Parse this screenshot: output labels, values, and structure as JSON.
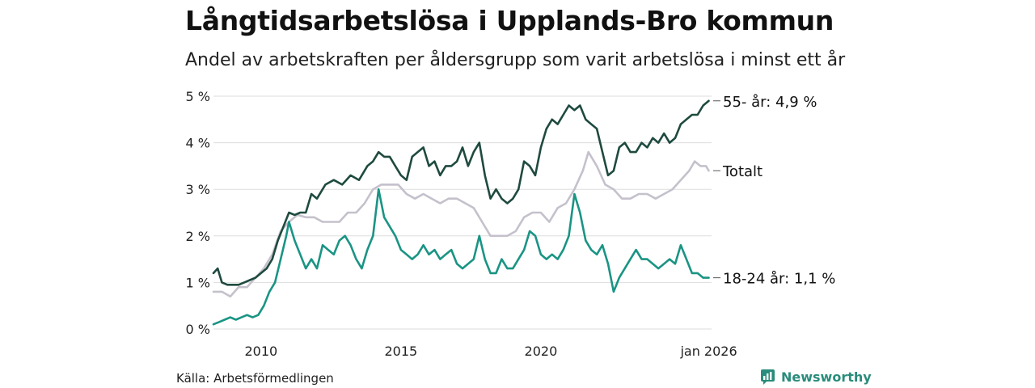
{
  "header": {
    "title": "Långtidsarbetslösa i Upplands-Bro kommun",
    "subtitle": "Andel av arbetskraften per åldersgrupp som varit arbetslösa i minst ett år"
  },
  "footer": {
    "source": "Källa: Arbetsförmedlingen",
    "brand": "Newsworthy"
  },
  "colors": {
    "series_55": "#1f4a3f",
    "series_total": "#c5c1cc",
    "series_18_24": "#1a9484",
    "grid": "#dddddd",
    "brand": "#2a8c7c"
  },
  "chart_data": {
    "type": "line",
    "title": "Långtidsarbetslösa i Upplands-Bro kommun",
    "subtitle": "Andel av arbetskraften per åldersgrupp som varit arbetslösa i minst ett år",
    "xlabel": "",
    "ylabel": "",
    "xlim": [
      2008.3,
      2026.1
    ],
    "ylim": [
      0,
      5
    ],
    "x_ticks": [
      {
        "value": 2010,
        "label": "2010"
      },
      {
        "value": 2015,
        "label": "2015"
      },
      {
        "value": 2020,
        "label": "2020"
      },
      {
        "value": 2026.0,
        "label": "jan 2026"
      }
    ],
    "y_ticks": [
      {
        "value": 0,
        "label": "0 %"
      },
      {
        "value": 1,
        "label": "1 %"
      },
      {
        "value": 2,
        "label": "2 %"
      },
      {
        "value": 3,
        "label": "3 %"
      },
      {
        "value": 4,
        "label": "4 %"
      },
      {
        "value": 5,
        "label": "5 %"
      }
    ],
    "grid": true,
    "series": [
      {
        "name": "Totalt",
        "end_label": "Totalt",
        "color": "#c5c1cc",
        "points": [
          [
            2008.3,
            0.8
          ],
          [
            2008.6,
            0.8
          ],
          [
            2008.9,
            0.7
          ],
          [
            2009.2,
            0.9
          ],
          [
            2009.5,
            0.9
          ],
          [
            2009.8,
            1.1
          ],
          [
            2010.1,
            1.3
          ],
          [
            2010.4,
            1.6
          ],
          [
            2010.7,
            2.1
          ],
          [
            2011.0,
            2.3
          ],
          [
            2011.3,
            2.45
          ],
          [
            2011.6,
            2.4
          ],
          [
            2011.9,
            2.4
          ],
          [
            2012.2,
            2.3
          ],
          [
            2012.5,
            2.3
          ],
          [
            2012.8,
            2.3
          ],
          [
            2013.1,
            2.5
          ],
          [
            2013.4,
            2.5
          ],
          [
            2013.7,
            2.7
          ],
          [
            2014.0,
            3.0
          ],
          [
            2014.3,
            3.1
          ],
          [
            2014.6,
            3.1
          ],
          [
            2014.9,
            3.1
          ],
          [
            2015.2,
            2.9
          ],
          [
            2015.5,
            2.8
          ],
          [
            2015.8,
            2.9
          ],
          [
            2016.1,
            2.8
          ],
          [
            2016.4,
            2.7
          ],
          [
            2016.7,
            2.8
          ],
          [
            2017.0,
            2.8
          ],
          [
            2017.3,
            2.7
          ],
          [
            2017.6,
            2.6
          ],
          [
            2017.9,
            2.3
          ],
          [
            2018.2,
            2.0
          ],
          [
            2018.5,
            2.0
          ],
          [
            2018.8,
            2.0
          ],
          [
            2019.1,
            2.1
          ],
          [
            2019.4,
            2.4
          ],
          [
            2019.7,
            2.5
          ],
          [
            2020.0,
            2.5
          ],
          [
            2020.3,
            2.3
          ],
          [
            2020.6,
            2.6
          ],
          [
            2020.9,
            2.7
          ],
          [
            2021.2,
            3.0
          ],
          [
            2021.5,
            3.4
          ],
          [
            2021.7,
            3.8
          ],
          [
            2022.0,
            3.5
          ],
          [
            2022.3,
            3.1
          ],
          [
            2022.6,
            3.0
          ],
          [
            2022.9,
            2.8
          ],
          [
            2023.2,
            2.8
          ],
          [
            2023.5,
            2.9
          ],
          [
            2023.8,
            2.9
          ],
          [
            2024.1,
            2.8
          ],
          [
            2024.4,
            2.9
          ],
          [
            2024.7,
            3.0
          ],
          [
            2025.0,
            3.2
          ],
          [
            2025.3,
            3.4
          ],
          [
            2025.5,
            3.6
          ],
          [
            2025.7,
            3.5
          ],
          [
            2025.9,
            3.5
          ],
          [
            2026.0,
            3.4
          ]
        ]
      },
      {
        "name": "55- år",
        "end_label": "55- år: 4,9 %",
        "color": "#1f4a3f",
        "points": [
          [
            2008.3,
            1.2
          ],
          [
            2008.45,
            1.3
          ],
          [
            2008.6,
            1.0
          ],
          [
            2008.8,
            0.95
          ],
          [
            2009.0,
            0.95
          ],
          [
            2009.2,
            0.95
          ],
          [
            2009.4,
            1.0
          ],
          [
            2009.6,
            1.05
          ],
          [
            2009.8,
            1.1
          ],
          [
            2010.0,
            1.2
          ],
          [
            2010.2,
            1.3
          ],
          [
            2010.4,
            1.5
          ],
          [
            2010.6,
            1.9
          ],
          [
            2010.8,
            2.2
          ],
          [
            2011.0,
            2.5
          ],
          [
            2011.2,
            2.45
          ],
          [
            2011.4,
            2.5
          ],
          [
            2011.6,
            2.5
          ],
          [
            2011.8,
            2.9
          ],
          [
            2012.0,
            2.8
          ],
          [
            2012.3,
            3.1
          ],
          [
            2012.6,
            3.2
          ],
          [
            2012.9,
            3.1
          ],
          [
            2013.2,
            3.3
          ],
          [
            2013.5,
            3.2
          ],
          [
            2013.8,
            3.5
          ],
          [
            2014.0,
            3.6
          ],
          [
            2014.2,
            3.8
          ],
          [
            2014.4,
            3.7
          ],
          [
            2014.6,
            3.7
          ],
          [
            2014.8,
            3.5
          ],
          [
            2015.0,
            3.3
          ],
          [
            2015.2,
            3.2
          ],
          [
            2015.4,
            3.7
          ],
          [
            2015.6,
            3.8
          ],
          [
            2015.8,
            3.9
          ],
          [
            2016.0,
            3.5
          ],
          [
            2016.2,
            3.6
          ],
          [
            2016.4,
            3.3
          ],
          [
            2016.6,
            3.5
          ],
          [
            2016.8,
            3.5
          ],
          [
            2017.0,
            3.6
          ],
          [
            2017.2,
            3.9
          ],
          [
            2017.4,
            3.5
          ],
          [
            2017.6,
            3.8
          ],
          [
            2017.8,
            4.0
          ],
          [
            2018.0,
            3.3
          ],
          [
            2018.2,
            2.8
          ],
          [
            2018.4,
            3.0
          ],
          [
            2018.6,
            2.8
          ],
          [
            2018.8,
            2.7
          ],
          [
            2019.0,
            2.8
          ],
          [
            2019.2,
            3.0
          ],
          [
            2019.4,
            3.6
          ],
          [
            2019.6,
            3.5
          ],
          [
            2019.8,
            3.3
          ],
          [
            2020.0,
            3.9
          ],
          [
            2020.2,
            4.3
          ],
          [
            2020.4,
            4.5
          ],
          [
            2020.6,
            4.4
          ],
          [
            2020.8,
            4.6
          ],
          [
            2021.0,
            4.8
          ],
          [
            2021.2,
            4.7
          ],
          [
            2021.4,
            4.8
          ],
          [
            2021.6,
            4.5
          ],
          [
            2021.8,
            4.4
          ],
          [
            2022.0,
            4.3
          ],
          [
            2022.2,
            3.8
          ],
          [
            2022.4,
            3.3
          ],
          [
            2022.6,
            3.4
          ],
          [
            2022.8,
            3.9
          ],
          [
            2023.0,
            4.0
          ],
          [
            2023.2,
            3.8
          ],
          [
            2023.4,
            3.8
          ],
          [
            2023.6,
            4.0
          ],
          [
            2023.8,
            3.9
          ],
          [
            2024.0,
            4.1
          ],
          [
            2024.2,
            4.0
          ],
          [
            2024.4,
            4.2
          ],
          [
            2024.6,
            4.0
          ],
          [
            2024.8,
            4.1
          ],
          [
            2025.0,
            4.4
          ],
          [
            2025.2,
            4.5
          ],
          [
            2025.4,
            4.6
          ],
          [
            2025.6,
            4.6
          ],
          [
            2025.8,
            4.8
          ],
          [
            2026.0,
            4.9
          ]
        ]
      },
      {
        "name": "18-24 år",
        "end_label": "18-24 år: 1,1 %",
        "color": "#1a9484",
        "points": [
          [
            2008.3,
            0.1
          ],
          [
            2008.5,
            0.15
          ],
          [
            2008.7,
            0.2
          ],
          [
            2008.9,
            0.25
          ],
          [
            2009.1,
            0.2
          ],
          [
            2009.3,
            0.25
          ],
          [
            2009.5,
            0.3
          ],
          [
            2009.7,
            0.25
          ],
          [
            2009.9,
            0.3
          ],
          [
            2010.1,
            0.5
          ],
          [
            2010.3,
            0.8
          ],
          [
            2010.5,
            1.0
          ],
          [
            2010.7,
            1.5
          ],
          [
            2010.9,
            2.0
          ],
          [
            2011.0,
            2.3
          ],
          [
            2011.2,
            1.9
          ],
          [
            2011.4,
            1.6
          ],
          [
            2011.6,
            1.3
          ],
          [
            2011.8,
            1.5
          ],
          [
            2012.0,
            1.3
          ],
          [
            2012.2,
            1.8
          ],
          [
            2012.4,
            1.7
          ],
          [
            2012.6,
            1.6
          ],
          [
            2012.8,
            1.9
          ],
          [
            2013.0,
            2.0
          ],
          [
            2013.2,
            1.8
          ],
          [
            2013.4,
            1.5
          ],
          [
            2013.6,
            1.3
          ],
          [
            2013.8,
            1.7
          ],
          [
            2014.0,
            2.0
          ],
          [
            2014.2,
            3.0
          ],
          [
            2014.4,
            2.4
          ],
          [
            2014.6,
            2.2
          ],
          [
            2014.8,
            2.0
          ],
          [
            2015.0,
            1.7
          ],
          [
            2015.2,
            1.6
          ],
          [
            2015.4,
            1.5
          ],
          [
            2015.6,
            1.6
          ],
          [
            2015.8,
            1.8
          ],
          [
            2016.0,
            1.6
          ],
          [
            2016.2,
            1.7
          ],
          [
            2016.4,
            1.5
          ],
          [
            2016.6,
            1.6
          ],
          [
            2016.8,
            1.7
          ],
          [
            2017.0,
            1.4
          ],
          [
            2017.2,
            1.3
          ],
          [
            2017.4,
            1.4
          ],
          [
            2017.6,
            1.5
          ],
          [
            2017.8,
            2.0
          ],
          [
            2018.0,
            1.5
          ],
          [
            2018.2,
            1.2
          ],
          [
            2018.4,
            1.2
          ],
          [
            2018.6,
            1.5
          ],
          [
            2018.8,
            1.3
          ],
          [
            2019.0,
            1.3
          ],
          [
            2019.2,
            1.5
          ],
          [
            2019.4,
            1.7
          ],
          [
            2019.6,
            2.1
          ],
          [
            2019.8,
            2.0
          ],
          [
            2020.0,
            1.6
          ],
          [
            2020.2,
            1.5
          ],
          [
            2020.4,
            1.6
          ],
          [
            2020.6,
            1.5
          ],
          [
            2020.8,
            1.7
          ],
          [
            2021.0,
            2.0
          ],
          [
            2021.2,
            2.9
          ],
          [
            2021.4,
            2.5
          ],
          [
            2021.6,
            1.9
          ],
          [
            2021.8,
            1.7
          ],
          [
            2022.0,
            1.6
          ],
          [
            2022.2,
            1.8
          ],
          [
            2022.4,
            1.4
          ],
          [
            2022.6,
            0.8
          ],
          [
            2022.8,
            1.1
          ],
          [
            2023.0,
            1.3
          ],
          [
            2023.2,
            1.5
          ],
          [
            2023.4,
            1.7
          ],
          [
            2023.6,
            1.5
          ],
          [
            2023.8,
            1.5
          ],
          [
            2024.0,
            1.4
          ],
          [
            2024.2,
            1.3
          ],
          [
            2024.4,
            1.4
          ],
          [
            2024.6,
            1.5
          ],
          [
            2024.8,
            1.4
          ],
          [
            2025.0,
            1.8
          ],
          [
            2025.2,
            1.5
          ],
          [
            2025.4,
            1.2
          ],
          [
            2025.6,
            1.2
          ],
          [
            2025.8,
            1.1
          ],
          [
            2026.0,
            1.1
          ]
        ]
      }
    ]
  }
}
